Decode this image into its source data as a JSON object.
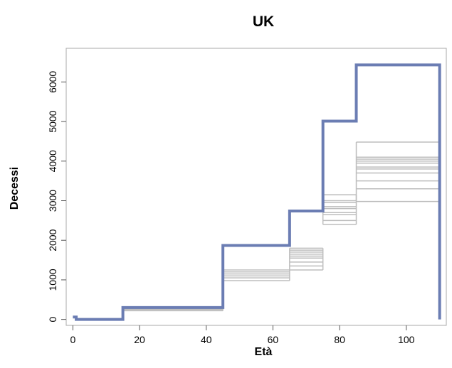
{
  "chart_data": {
    "type": "line",
    "title": "UK",
    "xlabel": "Età",
    "ylabel": "Decessi",
    "xlim": [
      -2,
      112
    ],
    "ylim": [
      -150,
      6850
    ],
    "x_ticks": [
      0,
      20,
      40,
      60,
      80,
      100
    ],
    "y_ticks": [
      0,
      1000,
      2000,
      3000,
      4000,
      5000,
      6000
    ],
    "grid": false,
    "legend": "none",
    "colors": {
      "observed": "#6b7db3",
      "simulated": "#bdbdbd",
      "frame": "#aaaaaa"
    },
    "age_bands": [
      [
        0,
        1
      ],
      [
        1,
        15
      ],
      [
        15,
        45
      ],
      [
        45,
        65
      ],
      [
        65,
        75
      ],
      [
        75,
        85
      ],
      [
        85,
        110
      ]
    ],
    "observed": {
      "values": [
        60,
        0,
        300,
        1870,
        2740,
        5010,
        6430
      ]
    },
    "simulated": {
      "bands": [
        {
          "range": [
            1,
            15
          ],
          "values": [
            10,
            20
          ]
        },
        {
          "range": [
            15,
            45
          ],
          "values": [
            220,
            250,
            270,
            290
          ]
        },
        {
          "range": [
            45,
            65
          ],
          "values": [
            980,
            1050,
            1100,
            1150,
            1200,
            1250
          ]
        },
        {
          "range": [
            65,
            75
          ],
          "values": [
            1250,
            1350,
            1450,
            1550,
            1600,
            1650,
            1700,
            1750,
            1800
          ]
        },
        {
          "range": [
            75,
            85
          ],
          "values": [
            2400,
            2500,
            2650,
            2700,
            2800,
            2850,
            2950,
            3000,
            3150
          ]
        },
        {
          "range": [
            85,
            110
          ],
          "values": [
            2980,
            3300,
            3500,
            3700,
            3800,
            3850,
            3950,
            4000,
            4050,
            4100,
            4480
          ]
        }
      ]
    }
  }
}
